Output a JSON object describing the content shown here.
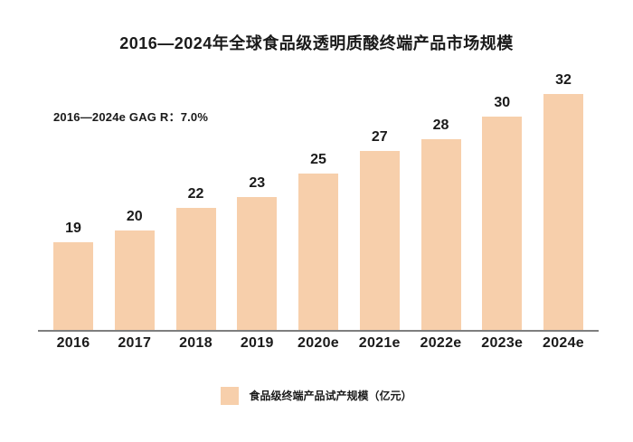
{
  "colors": {
    "bar": "#f7cfab",
    "axis": "#7e7e7e",
    "text": "#1a1a1a",
    "background": "#ffffff"
  },
  "chart_data": {
    "type": "bar",
    "title": "2016—2024年全球食品级透明质酸终端产品市场规模",
    "annotation": "2016—2024e GAG R：7.0%",
    "categories": [
      "2016",
      "2017",
      "2018",
      "2019",
      "2020e",
      "2021e",
      "2022e",
      "2023e",
      "2024e"
    ],
    "values": [
      19,
      20,
      22,
      23,
      25,
      27,
      28,
      30,
      32
    ],
    "unit": "亿元",
    "legend": {
      "label": "食品级终端产品试产规模（亿元）",
      "position": "bottom",
      "swatch": "peach-square"
    },
    "xlabel": "",
    "ylabel": "",
    "ylim": [
      0,
      32
    ],
    "grid": false,
    "y_axis_visible": false,
    "data_labels": true
  }
}
